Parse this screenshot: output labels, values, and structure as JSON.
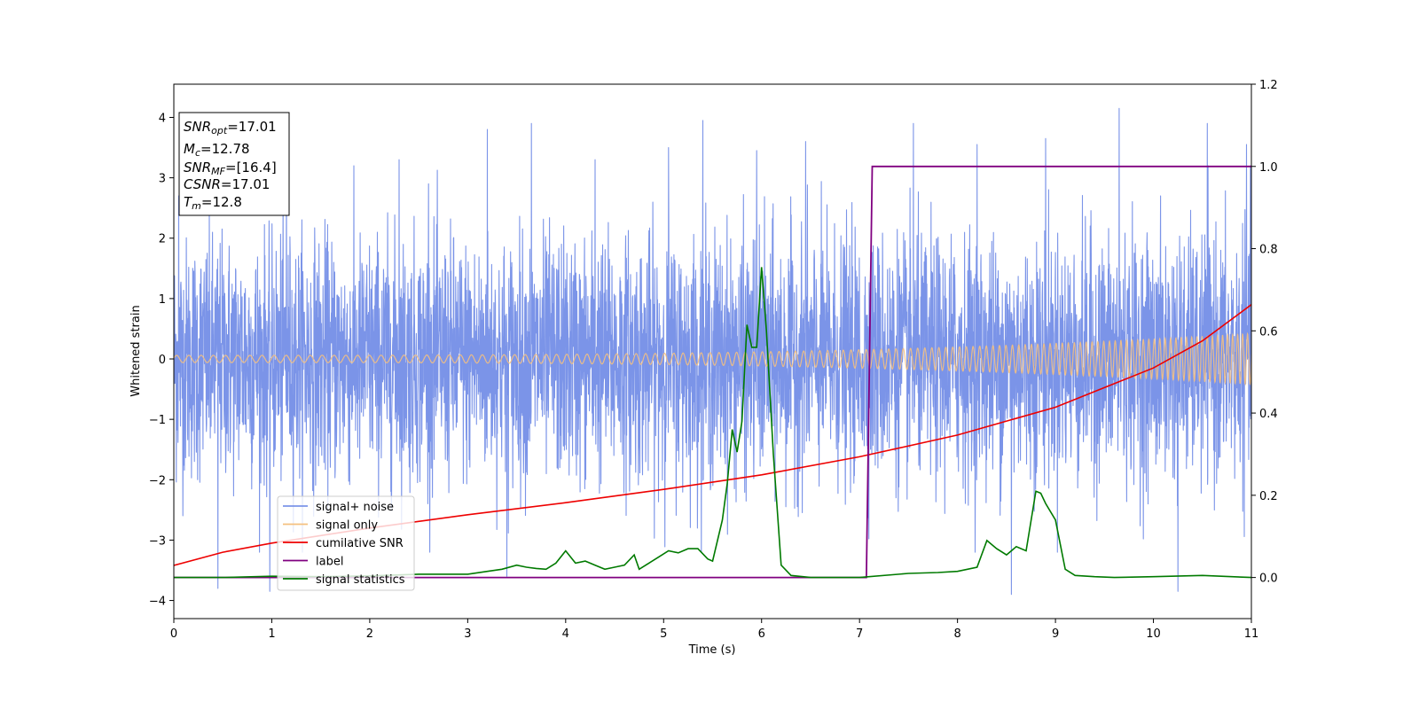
{
  "chart_data": {
    "type": "line",
    "xlabel": "Time (s)",
    "ylabel": "Whitened strain",
    "xlim": [
      0,
      11
    ],
    "ylim": [
      -4.3,
      4.55
    ],
    "y2lim": [
      -0.1,
      1.2
    ],
    "x_ticks": [
      "0",
      "1",
      "2",
      "3",
      "4",
      "5",
      "6",
      "7",
      "8",
      "9",
      "10",
      "11"
    ],
    "y_ticks": [
      "−4",
      "−3",
      "−2",
      "−1",
      "0",
      "1",
      "2",
      "3",
      "4"
    ],
    "y2_ticks": [
      "0.0",
      "0.2",
      "0.4",
      "0.6",
      "0.8",
      "1.0",
      "1.2"
    ],
    "grid": false,
    "legend_position": "lower-left",
    "info_box": {
      "lines": [
        {
          "sym": "SNR",
          "sub": "opt",
          "val": "=17.01"
        },
        {
          "sym": "M",
          "sub": "c",
          "val": "=12.78"
        },
        {
          "sym": "SNR",
          "sub": "MF",
          "val": "=[16.4]"
        },
        {
          "sym": "CSNR",
          "sub": "",
          "val": "=17.01"
        },
        {
          "sym": "T",
          "sub": "m",
          "val": "=12.8"
        }
      ]
    },
    "series": [
      {
        "name": "signal+ noise",
        "color": "#7b94e8",
        "axis": "left",
        "kind": "noise_envelope",
        "typical_amplitude": 2.2,
        "peak_spikes": [
          {
            "x": 0.05,
            "y": 2.7
          },
          {
            "x": 0.45,
            "y": -3.8
          },
          {
            "x": 0.98,
            "y": -3.85
          },
          {
            "x": 1.15,
            "y": 3.25
          },
          {
            "x": 2.3,
            "y": 3.3
          },
          {
            "x": 2.6,
            "y": 2.9
          },
          {
            "x": 3.2,
            "y": 3.8
          },
          {
            "x": 3.4,
            "y": -3.6
          },
          {
            "x": 3.65,
            "y": 3.9
          },
          {
            "x": 4.3,
            "y": 3.3
          },
          {
            "x": 5.05,
            "y": 3.5
          },
          {
            "x": 5.4,
            "y": 3.95
          },
          {
            "x": 5.95,
            "y": 3.45
          },
          {
            "x": 6.45,
            "y": 3.6
          },
          {
            "x": 7.55,
            "y": 3.9
          },
          {
            "x": 8.2,
            "y": 3.55
          },
          {
            "x": 8.55,
            "y": -3.9
          },
          {
            "x": 8.9,
            "y": 3.65
          },
          {
            "x": 9.65,
            "y": 4.15
          },
          {
            "x": 10.25,
            "y": -3.85
          },
          {
            "x": 10.55,
            "y": 3.9
          },
          {
            "x": 10.95,
            "y": 3.55
          }
        ]
      },
      {
        "name": "signal only",
        "color": "#f5c07f",
        "axis": "left",
        "kind": "chirp",
        "start_amplitude": 0.06,
        "end_amplitude": 0.42,
        "start_freq_hz": 8,
        "end_freq_hz": 20
      },
      {
        "name": "cumilative SNR",
        "color": "#ee0000",
        "axis": "left",
        "x": [
          0,
          0.5,
          1,
          2,
          3,
          4,
          5,
          6,
          7,
          8,
          9,
          10,
          10.5,
          11
        ],
        "y": [
          -3.42,
          -3.2,
          -3.05,
          -2.8,
          -2.58,
          -2.38,
          -2.16,
          -1.92,
          -1.62,
          -1.26,
          -0.8,
          -0.15,
          0.3,
          0.9
        ]
      },
      {
        "name": "label",
        "color": "#800080",
        "axis": "right",
        "x": [
          0,
          7.07,
          7.13,
          11
        ],
        "y": [
          0.0,
          0.0,
          1.0,
          1.0
        ]
      },
      {
        "name": "signal statistics",
        "color": "#007a00",
        "axis": "right",
        "x": [
          0,
          0.5,
          1,
          1.5,
          2,
          2.5,
          3,
          3.2,
          3.35,
          3.5,
          3.6,
          3.7,
          3.8,
          3.9,
          4.0,
          4.1,
          4.2,
          4.3,
          4.4,
          4.5,
          4.6,
          4.7,
          4.75,
          4.85,
          4.95,
          5.05,
          5.15,
          5.25,
          5.35,
          5.45,
          5.5,
          5.6,
          5.65,
          5.7,
          5.75,
          5.8,
          5.85,
          5.9,
          5.95,
          6.0,
          6.05,
          6.12,
          6.2,
          6.3,
          6.5,
          7.0,
          7.5,
          7.8,
          8.0,
          8.2,
          8.3,
          8.4,
          8.5,
          8.6,
          8.7,
          8.8,
          8.85,
          8.9,
          9.0,
          9.1,
          9.2,
          9.4,
          9.6,
          10.0,
          10.5,
          11
        ],
        "y": [
          0.0,
          0.0,
          0.003,
          0.002,
          0.004,
          0.008,
          0.008,
          0.015,
          0.02,
          0.03,
          0.025,
          0.022,
          0.02,
          0.035,
          0.065,
          0.035,
          0.04,
          0.03,
          0.02,
          0.025,
          0.03,
          0.055,
          0.02,
          0.035,
          0.05,
          0.065,
          0.06,
          0.07,
          0.07,
          0.045,
          0.04,
          0.14,
          0.23,
          0.36,
          0.305,
          0.38,
          0.615,
          0.56,
          0.56,
          0.755,
          0.6,
          0.3,
          0.03,
          0.005,
          0.0,
          0.0,
          0.01,
          0.012,
          0.015,
          0.025,
          0.09,
          0.07,
          0.055,
          0.075,
          0.065,
          0.21,
          0.205,
          0.18,
          0.14,
          0.02,
          0.005,
          0.002,
          0.0,
          0.002,
          0.005,
          0.0
        ]
      }
    ]
  }
}
